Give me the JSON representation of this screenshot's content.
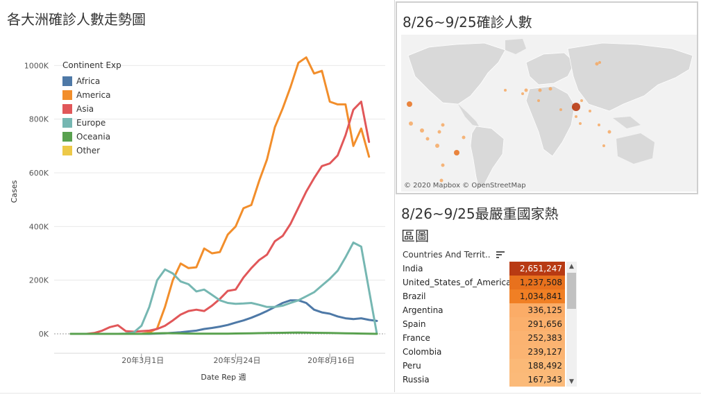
{
  "left_panel": {
    "title": "各大洲確診人數走勢圖",
    "legend_title": "Continent Exp",
    "x_title": "Date Rep 週",
    "y_title": "Cases"
  },
  "legend": [
    {
      "name": "Africa",
      "color": "#4e79a7"
    },
    {
      "name": "America",
      "color": "#f28e2b"
    },
    {
      "name": "Asia",
      "color": "#e15759"
    },
    {
      "name": "Europe",
      "color": "#76b7b2"
    },
    {
      "name": "Oceania",
      "color": "#59a14f"
    },
    {
      "name": "Other",
      "color": "#edc948"
    }
  ],
  "chart_data": {
    "type": "line",
    "title": "各大洲確診人數走勢圖",
    "xlabel": "Date Rep 週",
    "ylabel": "Cases",
    "ylim": [
      0,
      1050000
    ],
    "y_ticks": [
      "0K",
      "200K",
      "400K",
      "600K",
      "800K",
      "1000K"
    ],
    "x_ticks": [
      "20年3月1日",
      "20年5月24日",
      "20年8月16日"
    ],
    "x_tick_weeks": [
      9,
      21,
      33
    ],
    "weeks": [
      0,
      1,
      2,
      3,
      4,
      5,
      6,
      7,
      8,
      9,
      10,
      11,
      12,
      13,
      14,
      15,
      16,
      17,
      18,
      19,
      20,
      21,
      22,
      23,
      24,
      25,
      26,
      27,
      28,
      29,
      30,
      31,
      32,
      33,
      34,
      35,
      36,
      37,
      38,
      39
    ],
    "series": [
      {
        "name": "Africa",
        "color": "#4e79a7",
        "values": [
          0,
          0,
          0,
          0,
          0,
          0,
          0,
          0,
          0,
          0,
          0,
          1000,
          2000,
          4000,
          6000,
          9000,
          12000,
          18000,
          22000,
          27000,
          33000,
          42000,
          50000,
          60000,
          72000,
          85000,
          100000,
          115000,
          125000,
          125000,
          115000,
          90000,
          80000,
          75000,
          65000,
          58000,
          55000,
          58000,
          52000,
          48000
        ]
      },
      {
        "name": "America",
        "color": "#f28e2b",
        "values": [
          0,
          0,
          0,
          0,
          0,
          0,
          0,
          0,
          0,
          0,
          5000,
          20000,
          100000,
          200000,
          262000,
          245000,
          248000,
          318000,
          300000,
          305000,
          370000,
          400000,
          468000,
          480000,
          570000,
          650000,
          770000,
          840000,
          920000,
          1010000,
          1030000,
          970000,
          980000,
          865000,
          855000,
          855000,
          700000,
          765000,
          660000,
          0
        ]
      },
      {
        "name": "Asia",
        "color": "#e15759",
        "values": [
          0,
          0,
          0,
          3000,
          12000,
          25000,
          32000,
          10000,
          8000,
          10000,
          12000,
          18000,
          30000,
          50000,
          72000,
          85000,
          90000,
          85000,
          105000,
          130000,
          160000,
          165000,
          210000,
          245000,
          275000,
          295000,
          345000,
          365000,
          410000,
          470000,
          530000,
          580000,
          625000,
          635000,
          665000,
          740000,
          835000,
          865000,
          715000,
          0
        ]
      },
      {
        "name": "Europe",
        "color": "#76b7b2",
        "values": [
          0,
          0,
          0,
          0,
          0,
          0,
          0,
          1000,
          5000,
          30000,
          100000,
          200000,
          240000,
          225000,
          195000,
          185000,
          158000,
          165000,
          145000,
          125000,
          115000,
          112000,
          113000,
          115000,
          108000,
          100000,
          100000,
          105000,
          115000,
          125000,
          140000,
          155000,
          180000,
          205000,
          235000,
          285000,
          340000,
          325000,
          0,
          0
        ]
      },
      {
        "name": "Oceania",
        "color": "#59a14f",
        "values": [
          0,
          0,
          0,
          0,
          0,
          0,
          0,
          0,
          0,
          0,
          1000,
          2000,
          2500,
          2000,
          1500,
          1000,
          800,
          700,
          600,
          700,
          900,
          1200,
          1500,
          2000,
          2500,
          3000,
          3500,
          4000,
          4500,
          5000,
          4500,
          4000,
          3500,
          3000,
          2500,
          2000,
          1500,
          1000,
          0,
          0
        ]
      }
    ]
  },
  "map_panel": {
    "title": "8/26~9/25確診人數",
    "credit": "© 2020 Mapbox © OpenStreetMap"
  },
  "heatmap": {
    "title": "8/26~9/25最嚴重國家熱區圖",
    "column_header": "Countries And Territ..",
    "rows": [
      {
        "country": "India",
        "value": "2,651,247",
        "color": "#b83a13",
        "text_color": "#ffffff"
      },
      {
        "country": "United_States_of_America",
        "value": "1,237,508",
        "color": "#e8711d",
        "text_color": "#1a1a1a"
      },
      {
        "country": "Brazil",
        "value": "1,034,841",
        "color": "#f07f24",
        "text_color": "#1a1a1a"
      },
      {
        "country": "Argentina",
        "value": "336,125",
        "color": "#fbac67",
        "text_color": "#1a1a1a"
      },
      {
        "country": "Spain",
        "value": "291,656",
        "color": "#fbb06c",
        "text_color": "#1a1a1a"
      },
      {
        "country": "France",
        "value": "252,383",
        "color": "#fbb371",
        "text_color": "#1a1a1a"
      },
      {
        "country": "Colombia",
        "value": "239,127",
        "color": "#fbb472",
        "text_color": "#1a1a1a"
      },
      {
        "country": "Peru",
        "value": "188,492",
        "color": "#fbb977",
        "text_color": "#1a1a1a"
      },
      {
        "country": "Russia",
        "value": "167,343",
        "color": "#fbba79",
        "text_color": "#1a1a1a"
      }
    ]
  }
}
